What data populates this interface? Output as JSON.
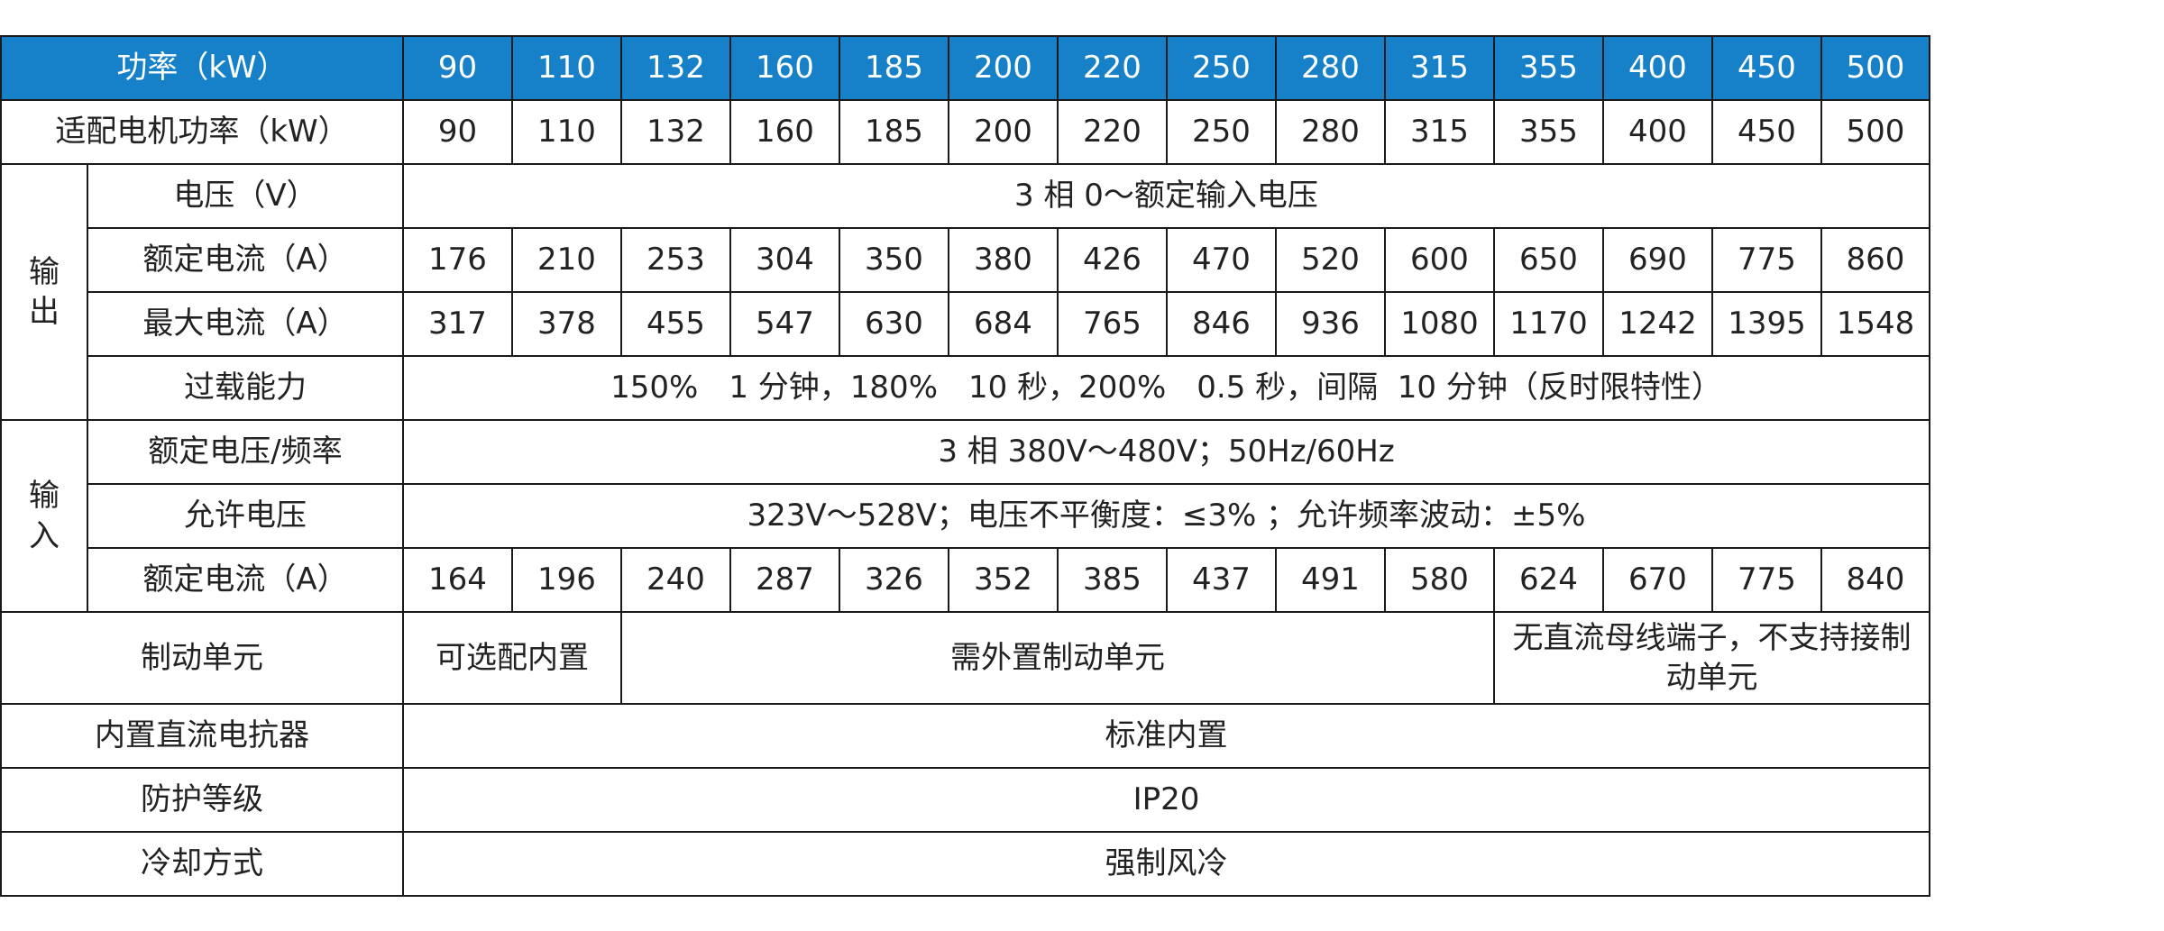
{
  "header": {
    "label": "功率（kW）",
    "values": [
      "90",
      "110",
      "132",
      "160",
      "185",
      "200",
      "220",
      "250",
      "280",
      "315",
      "355",
      "400",
      "450",
      "500"
    ]
  },
  "motor": {
    "label": "适配电机功率（kW）",
    "values": [
      "90",
      "110",
      "132",
      "160",
      "185",
      "200",
      "220",
      "250",
      "280",
      "315",
      "355",
      "400",
      "450",
      "500"
    ]
  },
  "output": {
    "group_label": "输出",
    "voltage": {
      "label": "电压（V）",
      "value": "3 相 0～额定输入电压"
    },
    "rated_current": {
      "label": "额定电流（A）",
      "values": [
        "176",
        "210",
        "253",
        "304",
        "350",
        "380",
        "426",
        "470",
        "520",
        "600",
        "650",
        "690",
        "775",
        "860"
      ]
    },
    "max_current": {
      "label": "最大电流（A）",
      "values": [
        "317",
        "378",
        "455",
        "547",
        "630",
        "684",
        "765",
        "846",
        "936",
        "1080",
        "1170",
        "1242",
        "1395",
        "1548"
      ]
    },
    "overload": {
      "label": "过载能力",
      "value": "150%　1 分钟，180%　10 秒，200%　0.5 秒，间隔  10 分钟（反时限特性）"
    }
  },
  "input": {
    "group_label": "输入",
    "rated_voltage": {
      "label": "额定电压/频率",
      "value": "3 相 380V～480V；50Hz/60Hz"
    },
    "allowed_voltage": {
      "label": "允许电压",
      "value": "323V～528V；电压不平衡度：≤3% ；允许频率波动：±5%"
    },
    "rated_current": {
      "label": "额定电流（A）",
      "values": [
        "164",
        "196",
        "240",
        "287",
        "326",
        "352",
        "385",
        "437",
        "491",
        "580",
        "624",
        "670",
        "775",
        "840"
      ]
    }
  },
  "braking": {
    "label": "制动单元",
    "optional": "可选配内置",
    "external": "需外置制动单元",
    "none": "无直流母线端子，不支持接制动单元"
  },
  "dc_reactor": {
    "label": "内置直流电抗器",
    "value": "标准内置"
  },
  "protection": {
    "label": "防护等级",
    "value": "IP20"
  },
  "cooling": {
    "label": "冷却方式",
    "value": "强制风冷"
  }
}
